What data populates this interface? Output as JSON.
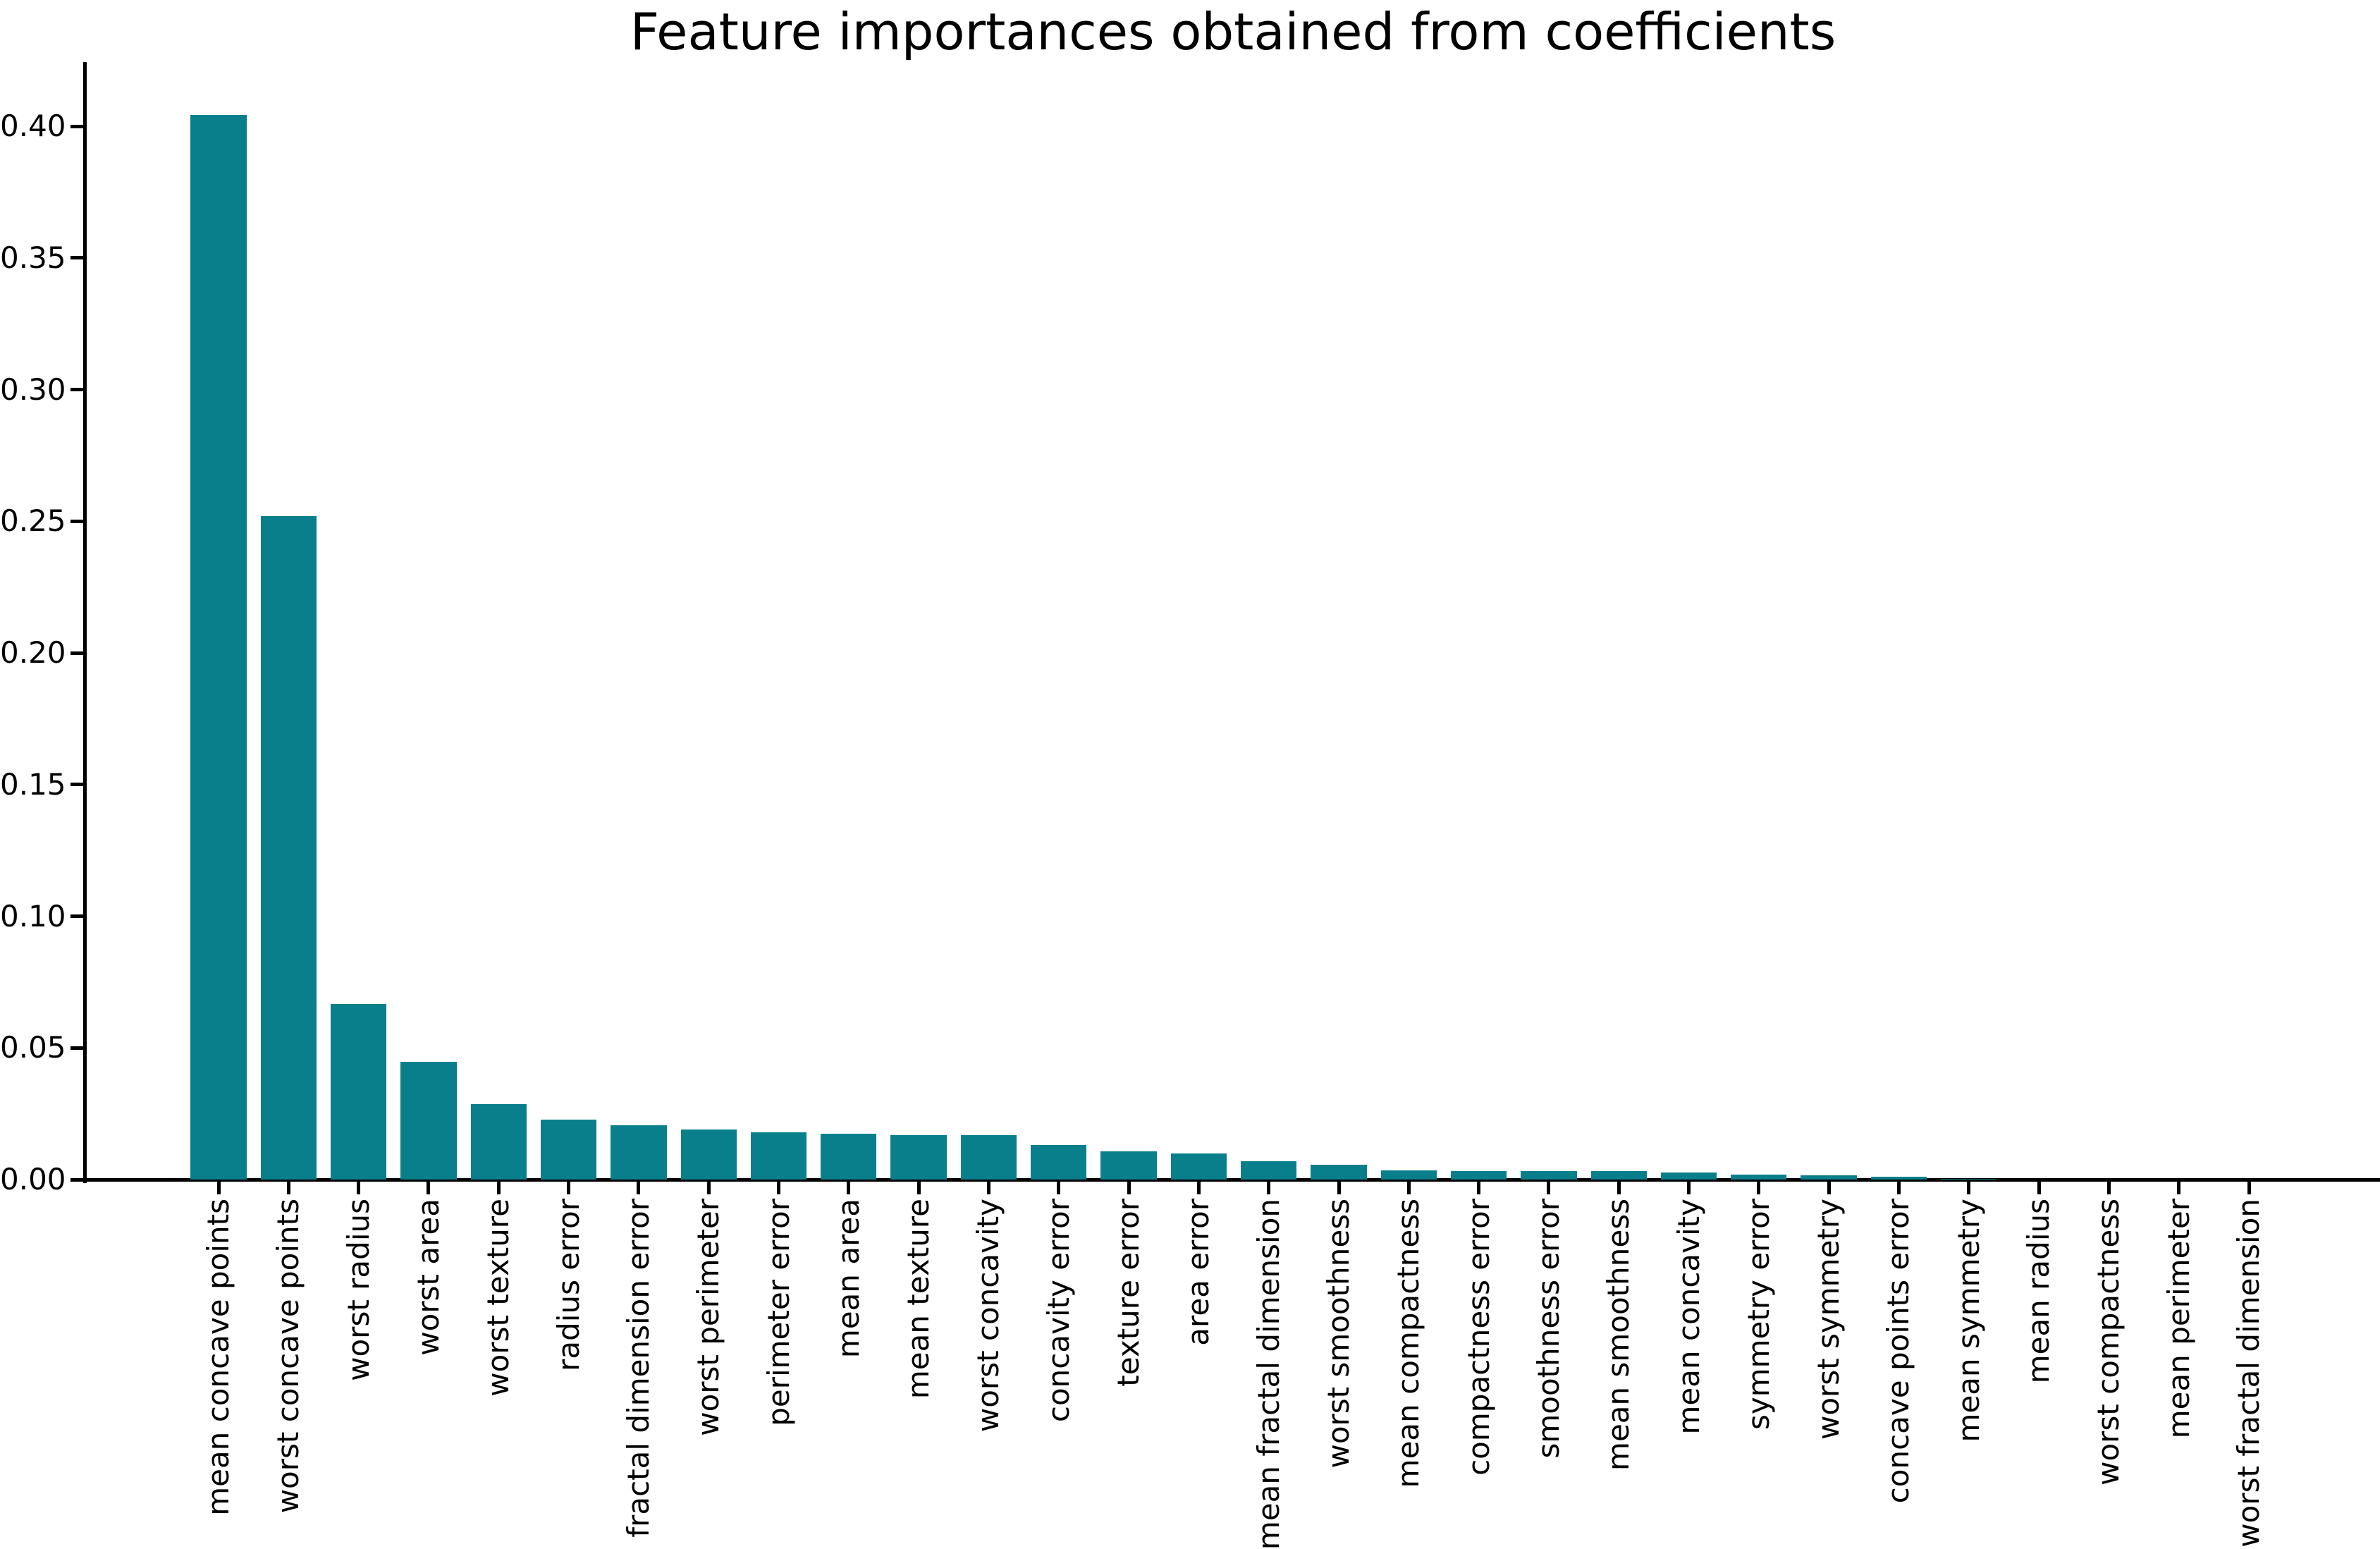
{
  "figure": {
    "title": "Feature importances obtained from coefficients"
  },
  "chart_data": {
    "type": "bar",
    "title": "Feature importances obtained from coefficients",
    "xlabel": "",
    "ylabel": "",
    "grid": false,
    "legend": null,
    "bar_color": "#0a7f8c",
    "axis_color": "#000000",
    "background_color": "#ffffff",
    "tick_label_rotation_deg": 90,
    "ylim": [
      0,
      0.4244
    ],
    "yticks": [
      0.0,
      0.05,
      0.1,
      0.15,
      0.2,
      0.25,
      0.3,
      0.35,
      0.4
    ],
    "ytick_labels": [
      "0.00",
      "0.05",
      "0.10",
      "0.15",
      "0.20",
      "0.25",
      "0.30",
      "0.35",
      "0.40"
    ],
    "categories": [
      "mean concave points",
      "worst concave points",
      "worst radius",
      "worst area",
      "worst texture",
      "radius error",
      "fractal dimension error",
      "worst perimeter",
      "perimeter error",
      "mean area",
      "mean texture",
      "worst concavity",
      "concavity error",
      "texture error",
      "area error",
      "mean fractal dimension",
      "worst smoothness",
      "mean compactness",
      "compactness error",
      "smoothness error",
      "mean smoothness",
      "mean concavity",
      "symmetry error",
      "worst symmetry",
      "concave points error",
      "mean symmetry",
      "mean radius",
      "worst compactness",
      "mean perimeter",
      "worst fractal dimension"
    ],
    "values": [
      0.4043,
      0.2519,
      0.0667,
      0.0447,
      0.0286,
      0.0228,
      0.0206,
      0.019,
      0.0179,
      0.0174,
      0.0169,
      0.0168,
      0.0131,
      0.0107,
      0.0099,
      0.0069,
      0.0056,
      0.0035,
      0.0033,
      0.0033,
      0.0031,
      0.0027,
      0.002,
      0.0015,
      0.0011,
      0.0002,
      0.0001,
      0.0001,
      0.0,
      0.0
    ]
  }
}
